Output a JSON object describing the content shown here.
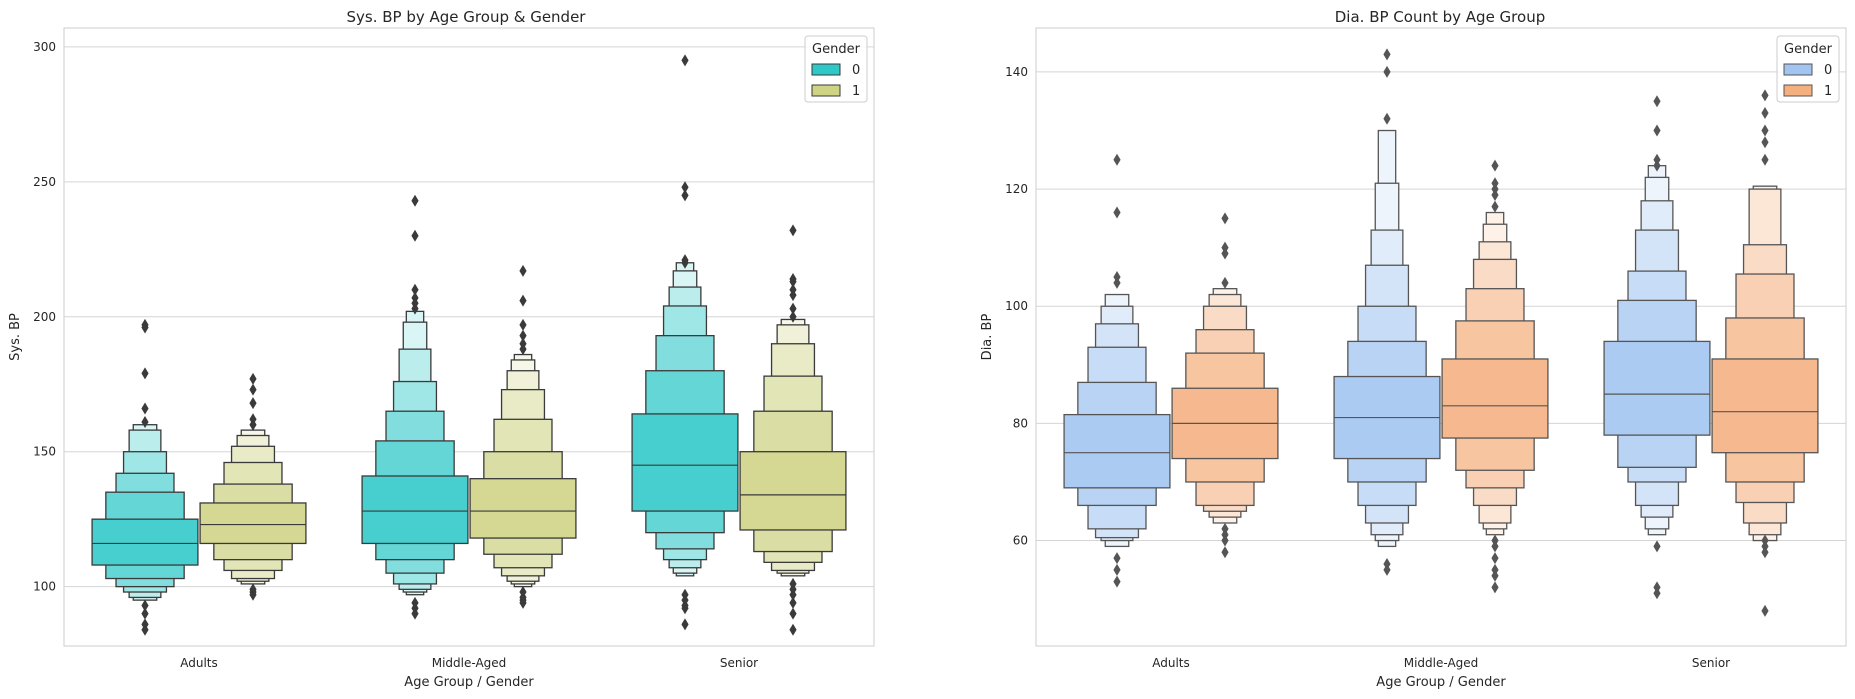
{
  "chart_data": [
    {
      "type": "boxen",
      "title": "Sys. BP by Age Group & Gender",
      "xlabel": "Age Group / Gender",
      "ylabel": "Sys. BP",
      "categories": [
        "Adults",
        "Middle-Aged",
        "Senior"
      ],
      "ylim": [
        78,
        307
      ],
      "yticks": [
        100,
        150,
        200,
        250,
        300
      ],
      "grid": true,
      "legend": {
        "title": "Gender",
        "placement": "top-right"
      },
      "series": [
        {
          "name": "0",
          "color": "#2ec8c8",
          "boxes": [
            {
              "category": "Adults",
              "median": 116,
              "levels": [
                [
                  108,
                  125
                ],
                [
                  103,
                  135
                ],
                [
                  100,
                  142
                ],
                [
                  98,
                  150
                ],
                [
                  96,
                  158
                ],
                [
                  95,
                  160
                ]
              ],
              "outliers": [
                197,
                196,
                179,
                166,
                161,
                93,
                90,
                86,
                84
              ]
            },
            {
              "category": "Middle-Aged",
              "median": 128,
              "levels": [
                [
                  116,
                  141
                ],
                [
                  110,
                  154
                ],
                [
                  105,
                  165
                ],
                [
                  101,
                  176
                ],
                [
                  99,
                  188
                ],
                [
                  98,
                  198
                ],
                [
                  97,
                  202
                ]
              ],
              "outliers": [
                243,
                230,
                210,
                207,
                205,
                203,
                94,
                92,
                90
              ]
            },
            {
              "category": "Senior",
              "median": 145,
              "levels": [
                [
                  128,
                  164
                ],
                [
                  120,
                  180
                ],
                [
                  114,
                  193
                ],
                [
                  110,
                  204
                ],
                [
                  107,
                  211
                ],
                [
                  105,
                  217
                ],
                [
                  104,
                  220
                ]
              ],
              "outliers": [
                295,
                248,
                245,
                221,
                220,
                97,
                95,
                93,
                92,
                86
              ]
            }
          ]
        },
        {
          "name": "1",
          "color": "#cfd384",
          "boxes": [
            {
              "category": "Adults",
              "median": 123,
              "levels": [
                [
                  116,
                  131
                ],
                [
                  110,
                  138
                ],
                [
                  106,
                  146
                ],
                [
                  103,
                  152
                ],
                [
                  102,
                  156
                ],
                [
                  101,
                  158
                ]
              ],
              "outliers": [
                177,
                173,
                168,
                162,
                160,
                99,
                98,
                97
              ]
            },
            {
              "category": "Middle-Aged",
              "median": 128,
              "levels": [
                [
                  118,
                  140
                ],
                [
                  112,
                  150
                ],
                [
                  107,
                  162
                ],
                [
                  104,
                  173
                ],
                [
                  102,
                  180
                ],
                [
                  101,
                  184
                ],
                [
                  100,
                  186
                ]
              ],
              "outliers": [
                217,
                206,
                197,
                193,
                190,
                188,
                98,
                96,
                95,
                94
              ]
            },
            {
              "category": "Senior",
              "median": 134,
              "levels": [
                [
                  121,
                  150
                ],
                [
                  113,
                  165
                ],
                [
                  109,
                  178
                ],
                [
                  106,
                  190
                ],
                [
                  105,
                  197
                ],
                [
                  104,
                  199
                ]
              ],
              "outliers": [
                232,
                214,
                213,
                210,
                208,
                203,
                200,
                101,
                99,
                97,
                94,
                90,
                84
              ]
            }
          ]
        }
      ]
    },
    {
      "type": "boxen",
      "title": "Dia. BP Count by Age Group",
      "xlabel": "Age Group / Gender",
      "ylabel": "Dia. BP",
      "categories": [
        "Adults",
        "Middle-Aged",
        "Senior"
      ],
      "ylim": [
        42,
        147.5
      ],
      "yticks": [
        60,
        80,
        100,
        120,
        140
      ],
      "grid": true,
      "legend": {
        "title": "Gender",
        "placement": "top-right"
      },
      "series": [
        {
          "name": "0",
          "color": "#a1c4f0",
          "boxes": [
            {
              "category": "Adults",
              "median": 75,
              "levels": [
                [
                  69,
                  81.5
                ],
                [
                  66,
                  87
                ],
                [
                  62,
                  93
                ],
                [
                  60.5,
                  97
                ],
                [
                  60,
                  100
                ],
                [
                  59,
                  102
                ]
              ],
              "outliers": [
                125,
                116,
                105,
                104,
                57,
                55,
                53
              ]
            },
            {
              "category": "Middle-Aged",
              "median": 81,
              "levels": [
                [
                  74,
                  88
                ],
                [
                  70,
                  94
                ],
                [
                  66,
                  100
                ],
                [
                  63,
                  107
                ],
                [
                  61,
                  113
                ],
                [
                  60,
                  121
                ],
                [
                  59,
                  130
                ]
              ],
              "outliers": [
                143,
                140,
                132,
                56,
                55
              ]
            },
            {
              "category": "Senior",
              "median": 85,
              "levels": [
                [
                  78,
                  94
                ],
                [
                  72.5,
                  101
                ],
                [
                  70,
                  106
                ],
                [
                  66,
                  113
                ],
                [
                  64,
                  118
                ],
                [
                  62,
                  122
                ],
                [
                  61,
                  124
                ]
              ],
              "outliers": [
                135,
                130,
                125,
                124,
                59,
                52,
                51
              ]
            }
          ]
        },
        {
          "name": "1",
          "color": "#f5b080",
          "boxes": [
            {
              "category": "Adults",
              "median": 80,
              "levels": [
                [
                  74,
                  86
                ],
                [
                  70,
                  92
                ],
                [
                  66,
                  96
                ],
                [
                  65,
                  100
                ],
                [
                  64,
                  102
                ],
                [
                  63,
                  103
                ]
              ],
              "outliers": [
                115,
                110,
                109,
                104,
                62,
                61,
                60,
                58
              ]
            },
            {
              "category": "Middle-Aged",
              "median": 83,
              "levels": [
                [
                  77.5,
                  91
                ],
                [
                  72,
                  97.5
                ],
                [
                  69,
                  103
                ],
                [
                  66,
                  108
                ],
                [
                  63,
                  111
                ],
                [
                  62,
                  114
                ],
                [
                  61,
                  116
                ]
              ],
              "outliers": [
                124,
                121,
                120,
                119,
                117,
                60,
                59,
                57,
                55,
                54,
                52
              ]
            },
            {
              "category": "Senior",
              "median": 82,
              "levels": [
                [
                  75,
                  91
                ],
                [
                  70,
                  98
                ],
                [
                  66.5,
                  105.5
                ],
                [
                  63,
                  110.5
                ],
                [
                  61,
                  120
                ],
                [
                  60,
                  120.5
                ]
              ],
              "outliers": [
                136,
                133,
                130,
                128,
                125,
                60,
                59,
                58,
                48
              ]
            }
          ]
        }
      ]
    }
  ]
}
